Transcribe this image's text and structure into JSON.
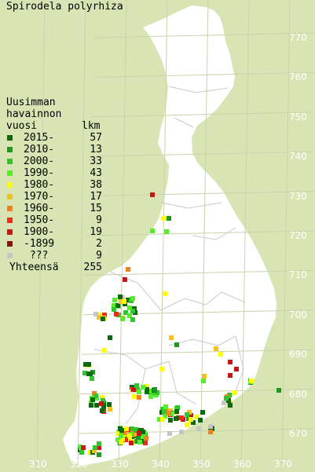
{
  "title": "Spirodela polyrhiza",
  "legend": {
    "heading": [
      "Uusimman",
      "havainnon"
    ],
    "col_year": "vuosi",
    "col_count": "lkm",
    "items": [
      {
        "label": "2015-",
        "count": "57",
        "color": "#0b6a0b"
      },
      {
        "label": "2010-",
        "count": "13",
        "color": "#1d9a1d"
      },
      {
        "label": "2000-",
        "count": "33",
        "color": "#2fc52f"
      },
      {
        "label": "1990-",
        "count": "43",
        "color": "#55ee2a"
      },
      {
        "label": "1980-",
        "count": "38",
        "color": "#ffff00"
      },
      {
        "label": "1970-",
        "count": "17",
        "color": "#f4c21a"
      },
      {
        "label": "1960-",
        "count": "15",
        "color": "#f4821a"
      },
      {
        "label": "1950-",
        "count": "9",
        "color": "#ee2a1a"
      },
      {
        "label": "1900-",
        "count": "19",
        "color": "#c71616"
      },
      {
        "label": "-1899",
        "count": "2",
        "color": "#8e1010"
      },
      {
        "label": " ???",
        "count": "9",
        "color": "#c6c6c6"
      }
    ],
    "total_label": "Yhteensä",
    "total_count": "255"
  },
  "axis": {
    "y_ticks": [
      "770",
      "760",
      "750",
      "740",
      "730",
      "720",
      "710",
      "700",
      "690",
      "680",
      "670"
    ],
    "x_ticks": [
      "310",
      "320",
      "330",
      "340",
      "350",
      "360",
      "370"
    ]
  },
  "colors": {
    "background": "#d8e4b4",
    "land": "#ffffff",
    "grid": "#c9d3a8",
    "axis_text": "#ffffff"
  }
}
